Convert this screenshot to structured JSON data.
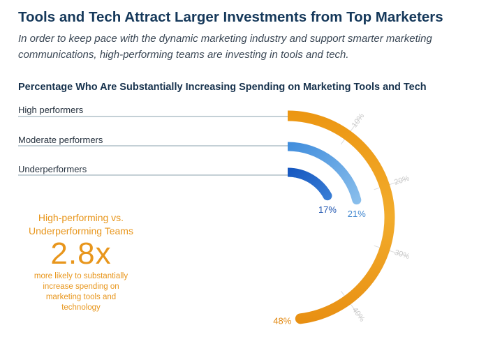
{
  "header": {
    "title": "Tools and Tech Attract Larger Investments from Top Marketers",
    "subtitle": "In order to keep pace with the dynamic marketing industry and support smarter marketing communications, high-performing teams are investing in tools and tech."
  },
  "callout": {
    "heading": "High-performing vs. Underperforming Teams",
    "value": "2.8x",
    "text": "more likely to substantially increase spending on marketing tools and technology"
  },
  "chart_data": {
    "type": "radial-bar",
    "title": "Percentage Who Are Substantially Increasing Spending on Marketing Tools and Tech",
    "categories": [
      "High performers",
      "Moderate performers",
      "Underperformers"
    ],
    "values": [
      48,
      21,
      17
    ],
    "value_labels": [
      "48%",
      "21%",
      "17%"
    ],
    "unit": "%",
    "scale_max": 50,
    "scale_ticks": [
      10,
      20,
      30,
      40
    ],
    "scale_tick_labels": [
      "10%",
      "20%",
      "30%",
      "40%"
    ],
    "colors": {
      "high": "#f1a21c",
      "moderate": "#5b9fe0",
      "under": "#1f64c8",
      "high_label": "#e28a14",
      "moderate_label": "#3f86cf",
      "under_label": "#1f55b0",
      "grid": "#dcdcdc",
      "legend_line": "#8aa0ad",
      "callout": "#e8961c"
    }
  }
}
